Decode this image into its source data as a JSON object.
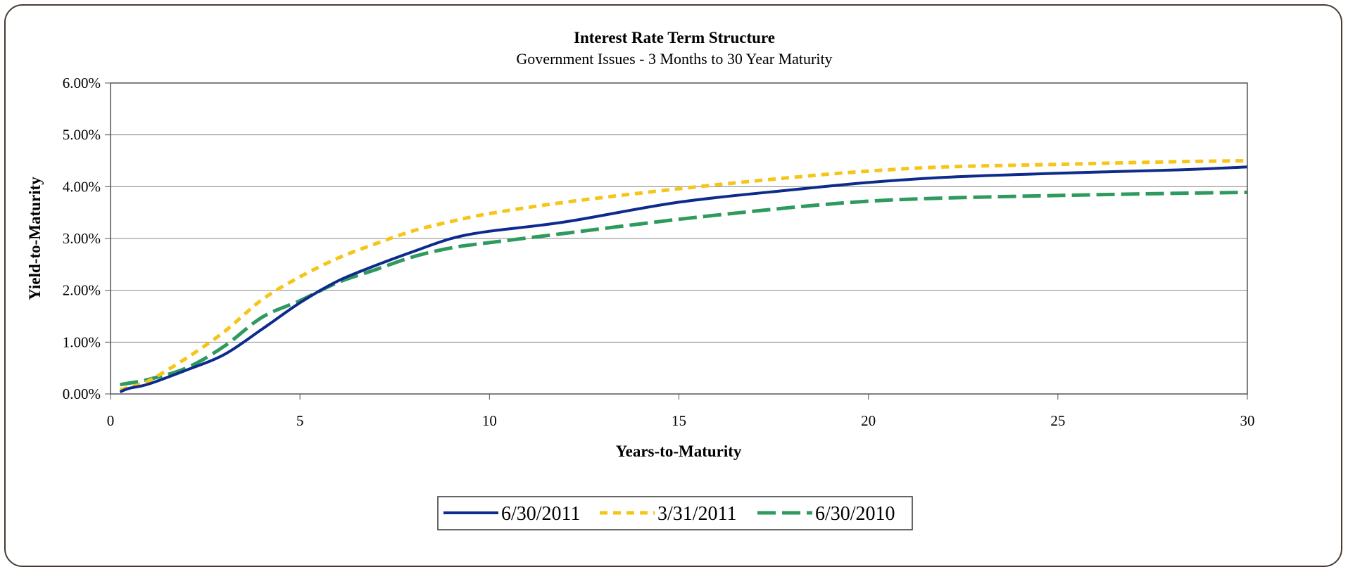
{
  "chart_data": {
    "type": "line",
    "title": "Interest Rate Term Structure",
    "subtitle": "Government Issues - 3 Months to 30 Year Maturity",
    "xlabel": "Years-to-Maturity",
    "ylabel": "Yield-to-Maturity",
    "xlim": [
      0,
      30
    ],
    "ylim": [
      0,
      0.06
    ],
    "x_ticks": [
      0,
      5,
      10,
      15,
      20,
      25,
      30
    ],
    "x_tick_labels": [
      "0",
      "5",
      "10",
      "15",
      "20",
      "25",
      "30"
    ],
    "y_ticks": [
      0,
      0.01,
      0.02,
      0.03,
      0.04,
      0.05,
      0.06
    ],
    "y_tick_labels": [
      "0.00%",
      "1.00%",
      "2.00%",
      "3.00%",
      "4.00%",
      "5.00%",
      "6.00%"
    ],
    "grid": "horizontal",
    "legend_position": "bottom",
    "series": [
      {
        "name": "6/30/2011",
        "color": "#0d2b8c",
        "style": "solid",
        "points": [
          [
            0.25,
            0.0004
          ],
          [
            0.5,
            0.0011
          ],
          [
            1,
            0.0019
          ],
          [
            2,
            0.0046
          ],
          [
            3,
            0.0076
          ],
          [
            4,
            0.0125
          ],
          [
            5,
            0.0176
          ],
          [
            6,
            0.0218
          ],
          [
            7,
            0.0248
          ],
          [
            8,
            0.0275
          ],
          [
            9,
            0.03
          ],
          [
            10,
            0.0314
          ],
          [
            12,
            0.0332
          ],
          [
            15,
            0.037
          ],
          [
            18,
            0.0394
          ],
          [
            20,
            0.0408
          ],
          [
            22,
            0.0418
          ],
          [
            25,
            0.0426
          ],
          [
            28,
            0.0432
          ],
          [
            30,
            0.0438
          ]
        ]
      },
      {
        "name": "3/31/2011",
        "color": "#f5c518",
        "style": "short-dash",
        "points": [
          [
            0.25,
            0.0008
          ],
          [
            0.5,
            0.0013
          ],
          [
            1,
            0.0025
          ],
          [
            2,
            0.0069
          ],
          [
            3,
            0.012
          ],
          [
            4,
            0.0182
          ],
          [
            5,
            0.0226
          ],
          [
            6,
            0.0262
          ],
          [
            7,
            0.029
          ],
          [
            8,
            0.0315
          ],
          [
            9,
            0.0333
          ],
          [
            10,
            0.0348
          ],
          [
            12,
            0.037
          ],
          [
            15,
            0.0396
          ],
          [
            18,
            0.0418
          ],
          [
            20,
            0.043
          ],
          [
            22,
            0.0438
          ],
          [
            25,
            0.0443
          ],
          [
            28,
            0.0448
          ],
          [
            30,
            0.045
          ]
        ]
      },
      {
        "name": "6/30/2010",
        "color": "#2e9a5e",
        "style": "long-dash",
        "points": [
          [
            0.25,
            0.0018
          ],
          [
            0.5,
            0.0021
          ],
          [
            1,
            0.0028
          ],
          [
            2,
            0.005
          ],
          [
            3,
            0.0092
          ],
          [
            4,
            0.0148
          ],
          [
            5,
            0.018
          ],
          [
            6,
            0.0215
          ],
          [
            7,
            0.024
          ],
          [
            8,
            0.0265
          ],
          [
            9,
            0.0282
          ],
          [
            10,
            0.0292
          ],
          [
            12,
            0.031
          ],
          [
            15,
            0.0337
          ],
          [
            18,
            0.036
          ],
          [
            20,
            0.0372
          ],
          [
            22,
            0.0378
          ],
          [
            25,
            0.0383
          ],
          [
            28,
            0.0387
          ],
          [
            30,
            0.0389
          ]
        ]
      }
    ]
  }
}
